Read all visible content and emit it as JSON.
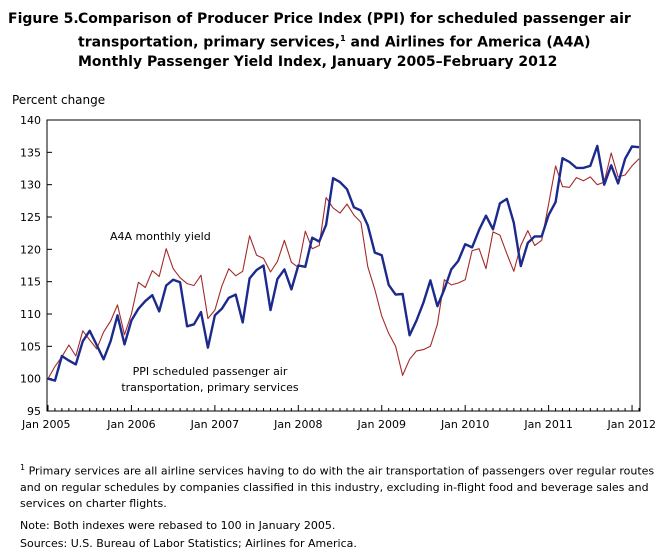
{
  "title": {
    "figure": "Figure 5.",
    "text": "Comparison of Producer Price Index (PPI) for scheduled passenger air transportation, primary services,",
    "text_sup": "1",
    "text_end": " and Airlines for America (A4A) Monthly Passenger Yield Index, January 2005–February 2012"
  },
  "chart_data": {
    "type": "line",
    "title": "",
    "ylabel": "Percent change",
    "xlabel": "",
    "ylim": [
      95,
      140
    ],
    "yticks": [
      95,
      100,
      105,
      110,
      115,
      120,
      125,
      130,
      135,
      140
    ],
    "xticks": [
      "Jan 2005",
      "Jan 2006",
      "Jan 2007",
      "Jan 2008",
      "Jan 2009",
      "Jan 2010",
      "Jan 2011",
      "Jan 2012"
    ],
    "x_start": "Jan 2005",
    "x_end": "Feb 2012",
    "series": [
      {
        "name": "PPI scheduled passenger air transportation, primary services",
        "label_lines": [
          "PPI scheduled passenger air",
          "transportation,  primary services"
        ],
        "color": "#1b2a8c",
        "values": [
          100,
          99.7,
          103.5,
          102.8,
          102.2,
          105.8,
          107.4,
          105.2,
          103.0,
          105.8,
          109.8,
          105.3,
          109.0,
          110.8,
          112.0,
          112.9,
          110.4,
          114.4,
          115.3,
          114.9,
          108.1,
          108.4,
          110.3,
          104.8,
          109.8,
          110.8,
          112.5,
          113.0,
          108.7,
          115.5,
          116.8,
          117.5,
          110.6,
          115.4,
          116.9,
          113.8,
          117.5,
          117.3,
          121.8,
          121.2,
          123.8,
          131.0,
          130.4,
          129.3,
          126.5,
          126.0,
          123.7,
          119.5,
          119.1,
          114.5,
          113.0,
          113.1,
          106.7,
          109.0,
          111.8,
          115.2,
          111.2,
          113.8,
          116.9,
          118.2,
          120.8,
          120.3,
          123.0,
          125.2,
          123.1,
          127.1,
          127.8,
          124.1,
          117.4,
          121.0,
          122.0,
          122.0,
          125.3,
          127.3,
          134.1,
          133.5,
          132.6,
          132.6,
          132.9,
          136.0,
          130.0,
          133.0,
          130.2,
          134.0,
          135.9,
          135.8
        ]
      },
      {
        "name": "A4A monthly yield",
        "label_lines": [
          "A4A monthly yield"
        ],
        "color": "#a52a2a",
        "values": [
          100,
          101.9,
          103.4,
          105.2,
          103.5,
          107.4,
          106.0,
          104.6,
          107.2,
          108.9,
          111.4,
          106.8,
          110.0,
          114.9,
          114.1,
          116.7,
          115.8,
          120.1,
          117.0,
          115.6,
          114.7,
          114.4,
          116.0,
          109.3,
          110.6,
          114.3,
          117.0,
          115.9,
          116.6,
          122.1,
          119.1,
          118.6,
          116.5,
          118.1,
          121.4,
          118.0,
          117.2,
          122.8,
          120.1,
          120.6,
          128.0,
          126.4,
          125.6,
          127.0,
          125.3,
          124.2,
          117.3,
          113.8,
          109.7,
          107.0,
          105.0,
          100.5,
          103.0,
          104.3,
          104.5,
          105.0,
          108.4,
          115.3,
          114.5,
          114.8,
          115.3,
          119.8,
          120.1,
          117.0,
          122.7,
          122.2,
          119.3,
          116.6,
          120.6,
          122.9,
          120.6,
          121.4,
          127.0,
          132.9,
          129.7,
          129.6,
          131.1,
          130.6,
          131.2,
          130.0,
          130.4,
          134.9,
          131.2,
          131.5,
          132.9,
          134.0
        ]
      }
    ]
  },
  "footnotes": {
    "sup": "1",
    "primary": " Primary services are all airline  services having to do with the air transportation  of passengers over regular routes and on regular schedules by companies classified in this industry, excluding in-flight food and beverage sales and services on charter flights.",
    "note": "Note:  Both indexes were rebased to 100 in January 2005.",
    "sources": "Sources: U.S. Bureau of Labor Statistics; Airlines for America."
  }
}
